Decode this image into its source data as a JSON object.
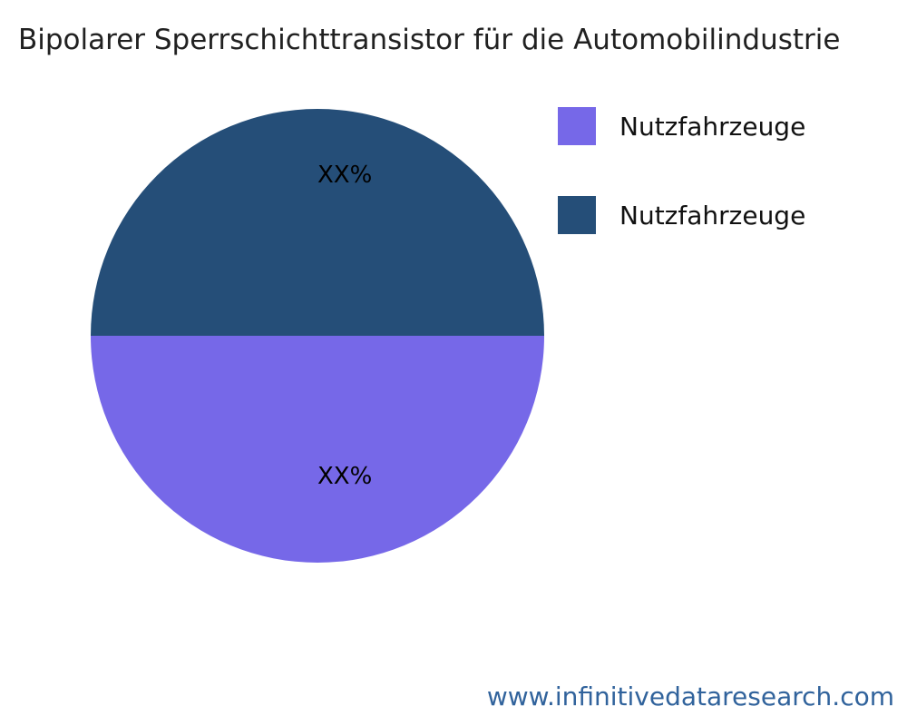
{
  "chart_data": {
    "type": "pie",
    "title": "Bipolarer Sperrschichttransistor für die Automobilindustrie",
    "legend_position": "right",
    "slices": [
      {
        "label": "Nutzfahrzeuge",
        "value": 50,
        "value_label": "XX%",
        "color": "#254E78",
        "position": "top"
      },
      {
        "label": "Nutzfahrzeuge",
        "value": 50,
        "value_label": "XX%",
        "color": "#7668E8",
        "position": "bottom"
      }
    ],
    "legend": [
      {
        "label": "Nutzfahrzeuge",
        "color": "#7668E8"
      },
      {
        "label": "Nutzfahrzeuge",
        "color": "#254E78"
      }
    ]
  },
  "footer": {
    "url": "www.infinitivedataresearch.com"
  }
}
